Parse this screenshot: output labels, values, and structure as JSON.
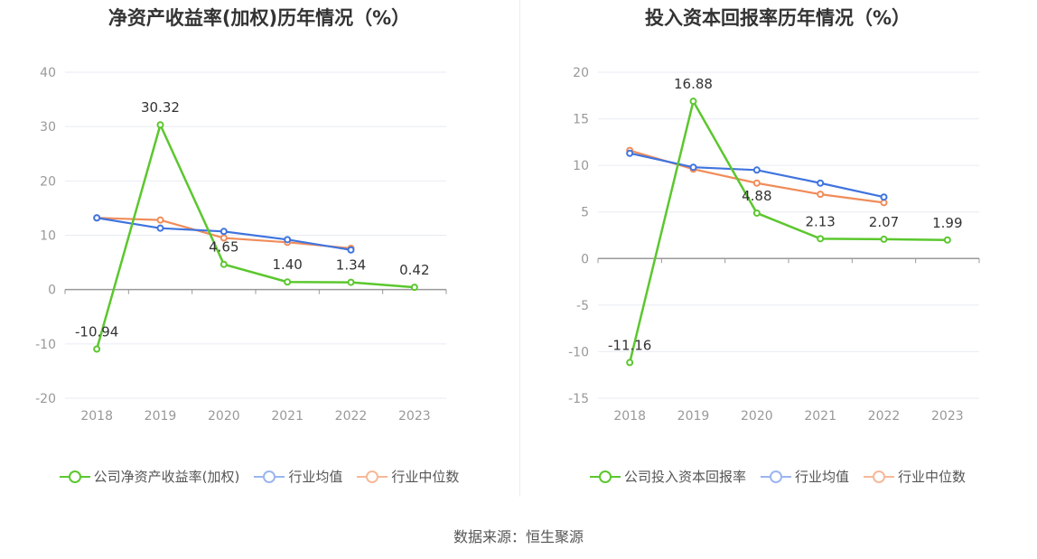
{
  "source": "数据来源：恒生聚源",
  "colors": {
    "company": "#5bc72e",
    "industry_avg": "#3f74de",
    "industry_median": "#f08c5a",
    "grid": "#e8ebf3",
    "zero_axis": "#999999"
  },
  "chart_data": [
    {
      "type": "line",
      "title": "净资产收益率(加权)历年情况（%）",
      "categories": [
        "2018",
        "2019",
        "2020",
        "2021",
        "2022",
        "2023"
      ],
      "ylim": [
        -20,
        40
      ],
      "yticks": [
        40,
        30,
        20,
        10,
        0,
        -10,
        -20
      ],
      "grid": true,
      "legend_position": "bottom",
      "series": [
        {
          "name": "公司净资产收益率(加权)",
          "key": "company",
          "values": [
            -10.94,
            30.32,
            4.65,
            1.4,
            1.34,
            0.42
          ],
          "labels": [
            "-10.94",
            "30.32",
            "4.65",
            "1.40",
            "1.34",
            "0.42"
          ]
        },
        {
          "name": "行业均值",
          "key": "industry_avg",
          "values": [
            13.2,
            11.3,
            10.7,
            9.2,
            7.3,
            null
          ]
        },
        {
          "name": "行业中位数",
          "key": "industry_median",
          "values": [
            13.2,
            12.8,
            9.5,
            8.7,
            7.6,
            null
          ]
        }
      ]
    },
    {
      "type": "line",
      "title": "投入资本回报率历年情况（%）",
      "categories": [
        "2018",
        "2019",
        "2020",
        "2021",
        "2022",
        "2023"
      ],
      "ylim": [
        -15,
        20
      ],
      "yticks": [
        20,
        15,
        10,
        5,
        0,
        -5,
        -10,
        -15
      ],
      "grid": true,
      "legend_position": "bottom",
      "series": [
        {
          "name": "公司投入资本回报率",
          "key": "company",
          "values": [
            -11.16,
            16.88,
            4.88,
            2.13,
            2.07,
            1.99
          ],
          "labels": [
            "-11.16",
            "16.88",
            "4.88",
            "2.13",
            "2.07",
            "1.99"
          ]
        },
        {
          "name": "行业均值",
          "key": "industry_avg",
          "values": [
            11.3,
            9.8,
            9.5,
            8.1,
            6.6,
            null
          ]
        },
        {
          "name": "行业中位数",
          "key": "industry_median",
          "values": [
            11.6,
            9.6,
            8.1,
            6.9,
            6.0,
            null
          ]
        }
      ]
    }
  ]
}
